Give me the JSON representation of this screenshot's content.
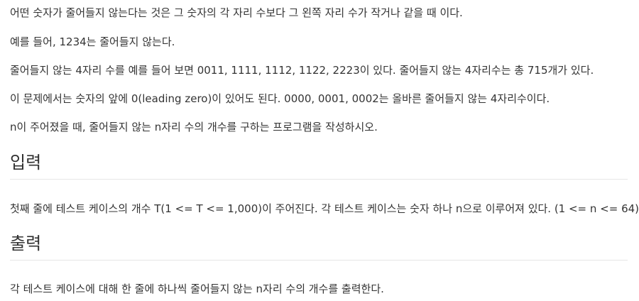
{
  "problem": {
    "description": [
      "어떤 숫자가 줄어들지 않는다는 것은 그 숫자의 각 자리 수보다 그 왼쪽 자리 수가 작거나 같을 때 이다.",
      "예를 들어, 1234는 줄어들지 않는다.",
      "줄어들지 않는 4자리 수를 예를 들어 보면 0011, 1111, 1112, 1122, 2223이 있다. 줄어들지 않는 4자리수는 총 715개가 있다.",
      "이 문제에서는 숫자의 앞에 0(leading zero)이 있어도 된다. 0000, 0001, 0002는 올바른 줄어들지 않는 4자리수이다.",
      "n이 주어졌을 때, 줄어들지 않는 n자리 수의 개수를 구하는 프로그램을 작성하시오."
    ],
    "input_heading": "입력",
    "input_text": "첫째 줄에 테스트 케이스의 개수 T(1 <= T <= 1,000)이 주어진다. 각 테스트 케이스는 숫자 하나 n으로 이루어져 있다. (1 <= n <= 64)",
    "output_heading": "출력",
    "output_text": "각 테스트 케이스에 대해 한 줄에 하나씩 줄어들지 않는 n자리 수의 개수를 출력한다."
  }
}
